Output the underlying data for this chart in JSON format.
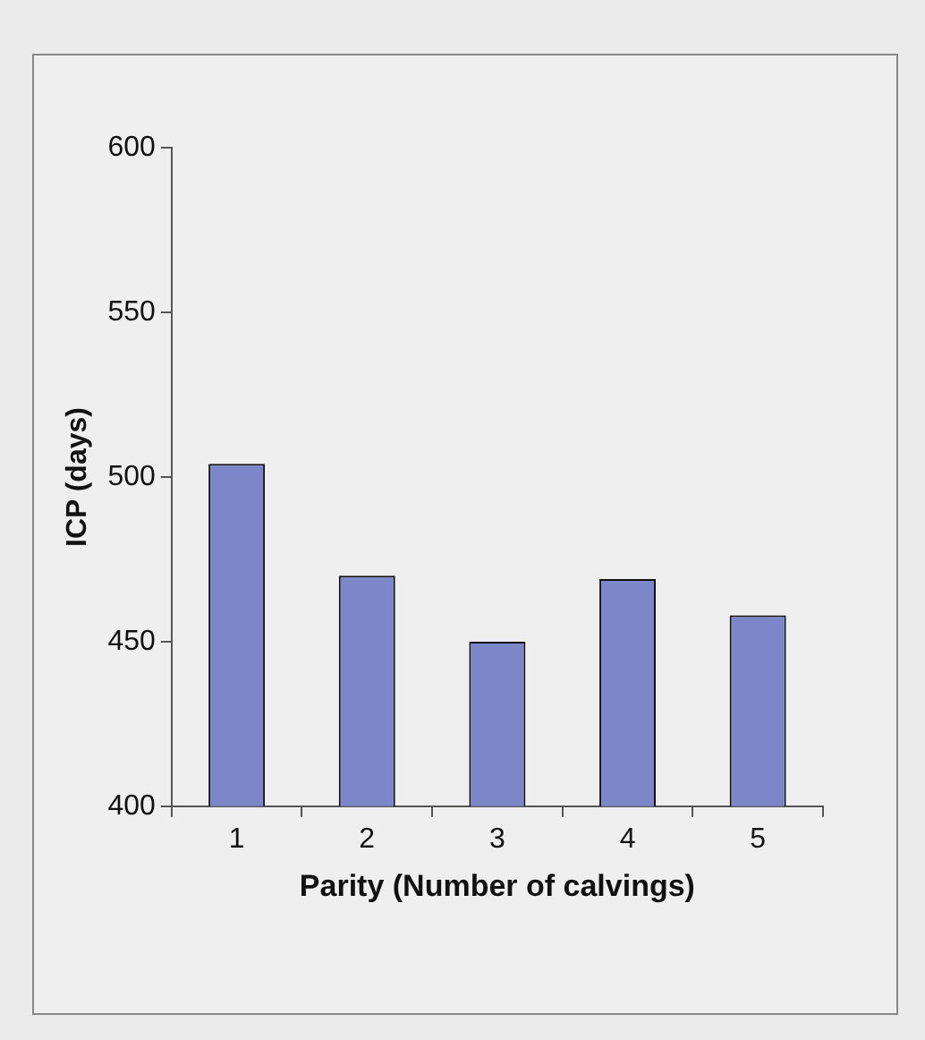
{
  "chart_data": {
    "type": "bar",
    "xlabel": "Parity (Number of calvings)",
    "ylabel": "ICP (days)",
    "categories": [
      "1",
      "2",
      "3",
      "4",
      "5"
    ],
    "values": [
      504,
      470,
      450,
      469,
      458
    ],
    "color": "#7b87c8",
    "ylim": [
      400,
      600
    ],
    "yticks": [
      400,
      450,
      500,
      550,
      600
    ],
    "grid": false,
    "legend": false
  }
}
